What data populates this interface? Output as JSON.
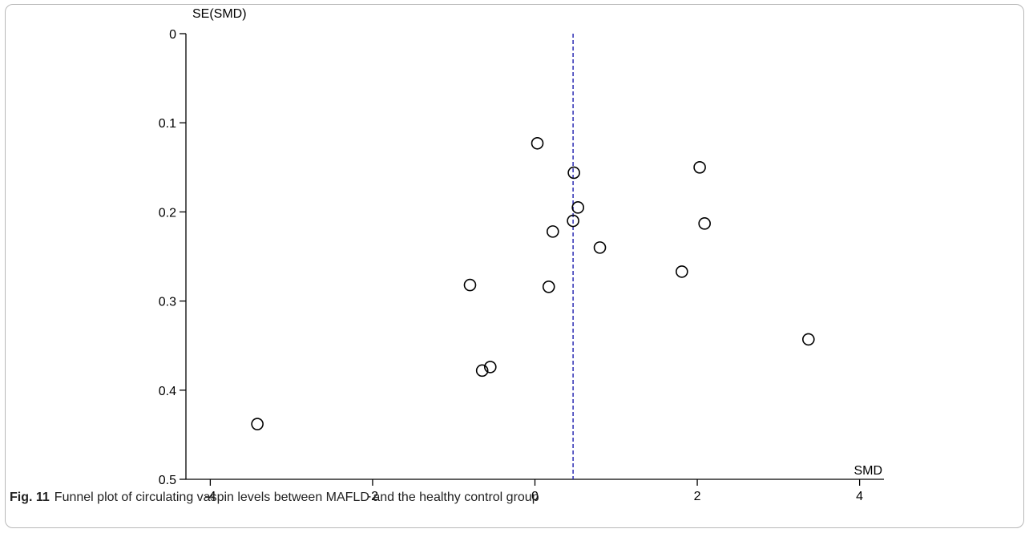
{
  "caption": {
    "figure_number": "Fig. 11",
    "text": "Funnel plot of circulating vaspin levels between MAFLD and the healthy control group"
  },
  "chart_data": {
    "type": "scatter",
    "xlabel": "SMD",
    "ylabel": "SE(SMD)",
    "xlim": [
      -4.3,
      4.3
    ],
    "ylim": [
      0,
      0.5
    ],
    "y_inverted": true,
    "x_ticks": [
      -4,
      -2,
      0,
      2,
      4
    ],
    "y_ticks": [
      0,
      0.1,
      0.2,
      0.3,
      0.4,
      0.5
    ],
    "x_tick_labels": [
      "-4",
      "-2",
      "0",
      "2",
      "4"
    ],
    "y_tick_labels": [
      "0",
      "0.1",
      "0.2",
      "0.3",
      "0.4",
      "0.5"
    ],
    "reference_line": {
      "x": 0.47,
      "style": "dashed",
      "color": "#2b2bb3"
    },
    "marker": {
      "shape": "open-circle",
      "color": "#000000"
    },
    "points": [
      {
        "x": 0.03,
        "y": 0.123
      },
      {
        "x": 0.48,
        "y": 0.156
      },
      {
        "x": 2.03,
        "y": 0.15
      },
      {
        "x": 0.53,
        "y": 0.195
      },
      {
        "x": 0.47,
        "y": 0.21
      },
      {
        "x": 0.22,
        "y": 0.222
      },
      {
        "x": 2.09,
        "y": 0.213
      },
      {
        "x": 0.8,
        "y": 0.24
      },
      {
        "x": 1.81,
        "y": 0.267
      },
      {
        "x": -0.8,
        "y": 0.282
      },
      {
        "x": 0.17,
        "y": 0.284
      },
      {
        "x": 3.37,
        "y": 0.343
      },
      {
        "x": -0.55,
        "y": 0.374
      },
      {
        "x": -0.65,
        "y": 0.378
      },
      {
        "x": -3.42,
        "y": 0.438
      }
    ]
  }
}
